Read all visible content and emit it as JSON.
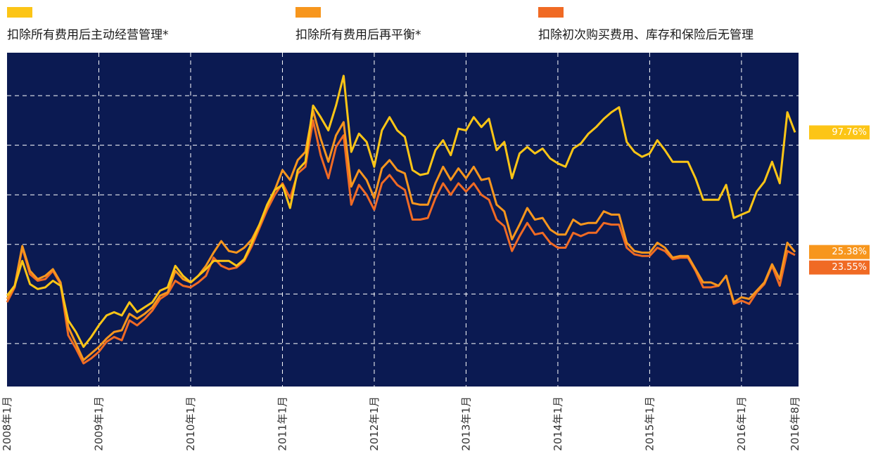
{
  "chart_data": {
    "type": "line",
    "categories": [
      "2008年1月",
      null,
      null,
      null,
      null,
      null,
      null,
      null,
      null,
      null,
      null,
      null,
      "2009年1月",
      null,
      null,
      null,
      null,
      null,
      null,
      null,
      null,
      null,
      null,
      null,
      "2010年1月",
      null,
      null,
      null,
      null,
      null,
      null,
      null,
      null,
      null,
      null,
      null,
      "2011年1月",
      null,
      null,
      null,
      null,
      null,
      null,
      null,
      null,
      null,
      null,
      null,
      "2012年1月",
      null,
      null,
      null,
      null,
      null,
      null,
      null,
      null,
      null,
      null,
      null,
      "2013年1月",
      null,
      null,
      null,
      null,
      null,
      null,
      null,
      null,
      null,
      null,
      null,
      "2014年1月",
      null,
      null,
      null,
      null,
      null,
      null,
      null,
      null,
      null,
      null,
      null,
      "2015年1月",
      null,
      null,
      null,
      null,
      null,
      null,
      null,
      null,
      null,
      null,
      null,
      "2016年1月",
      null,
      null,
      null,
      null,
      null,
      null,
      "2016年8月"
    ],
    "series": [
      {
        "name": "扣除所有费用后主动经营管理*",
        "color": "#fcc516",
        "end_label": "97.76%",
        "values": [
          -1,
          5,
          20,
          6,
          3,
          4,
          8,
          5,
          -16,
          -23,
          -32,
          -26,
          -19,
          -13,
          -11,
          -13,
          -5,
          -11,
          -8,
          -5,
          2,
          4,
          17,
          11,
          7,
          11,
          15,
          20,
          20,
          20,
          17,
          21,
          31,
          42,
          54,
          63,
          66,
          52,
          75,
          80,
          114,
          107,
          99,
          114,
          132,
          86,
          97,
          92,
          77,
          99,
          107,
          99,
          95,
          75,
          72,
          73,
          87,
          93,
          84,
          100,
          99,
          107,
          101,
          106,
          87,
          92,
          70,
          85,
          89,
          85,
          88,
          82,
          79,
          77,
          88,
          91,
          97,
          101,
          106,
          110,
          113,
          92,
          86,
          83,
          85,
          93,
          87,
          80,
          80,
          80,
          70,
          57,
          57,
          57,
          66,
          46,
          48,
          50,
          62,
          68,
          80,
          67,
          110,
          97.76
        ]
      },
      {
        "name": "扣除所有费用后再平衡*",
        "color": "#f7961d",
        "end_label": "25.38%",
        "values": [
          -3,
          5,
          29,
          14,
          9,
          11,
          15,
          7,
          -20,
          -30,
          -40,
          -36,
          -32,
          -27,
          -23,
          -22,
          -12,
          -15,
          -12,
          -8,
          -1,
          1,
          14,
          9,
          7,
          11,
          17,
          25,
          32,
          26,
          25,
          28,
          33,
          42,
          53,
          63,
          75,
          69,
          81,
          86,
          111,
          94,
          80,
          96,
          104,
          65,
          75,
          69,
          58,
          76,
          81,
          75,
          73,
          55,
          54,
          54,
          67,
          77,
          69,
          76,
          70,
          77,
          69,
          70,
          54,
          50,
          33,
          42,
          52,
          45,
          46,
          39,
          36,
          36,
          45,
          42,
          43,
          43,
          50,
          48,
          48,
          31,
          26,
          25,
          25,
          31,
          28,
          22,
          23,
          23,
          15,
          7,
          7,
          5,
          11,
          -5,
          -2,
          -3,
          2,
          7,
          18,
          9,
          31,
          25.38
        ]
      },
      {
        "name": "扣除初次购买费用、库存和保险后无管理",
        "color": "#f06a24",
        "end_label": "23.55%",
        "values": [
          -5,
          4,
          28,
          12,
          8,
          9,
          14,
          6,
          -25,
          -33,
          -42,
          -39,
          -35,
          -29,
          -26,
          -28,
          -16,
          -19,
          -15,
          -10,
          -3,
          0,
          8,
          5,
          4,
          7,
          11,
          22,
          17,
          15,
          16,
          20,
          29,
          40,
          51,
          60,
          67,
          58,
          73,
          77,
          105,
          84,
          70,
          89,
          96,
          54,
          66,
          60,
          51,
          67,
          72,
          66,
          63,
          45,
          45,
          46,
          58,
          67,
          60,
          67,
          62,
          67,
          60,
          57,
          45,
          41,
          26,
          35,
          43,
          36,
          37,
          31,
          28,
          28,
          37,
          35,
          37,
          37,
          43,
          42,
          42,
          28,
          24,
          23,
          23,
          28,
          26,
          21,
          22,
          22,
          14,
          4,
          4,
          5,
          11,
          -6,
          -4,
          -6,
          1,
          6,
          17,
          5,
          26,
          23.55
        ]
      }
    ],
    "ylim": [
      -56,
      146
    ],
    "yticks": [
      -30,
      0,
      30,
      60,
      90,
      120
    ],
    "grid": true
  }
}
